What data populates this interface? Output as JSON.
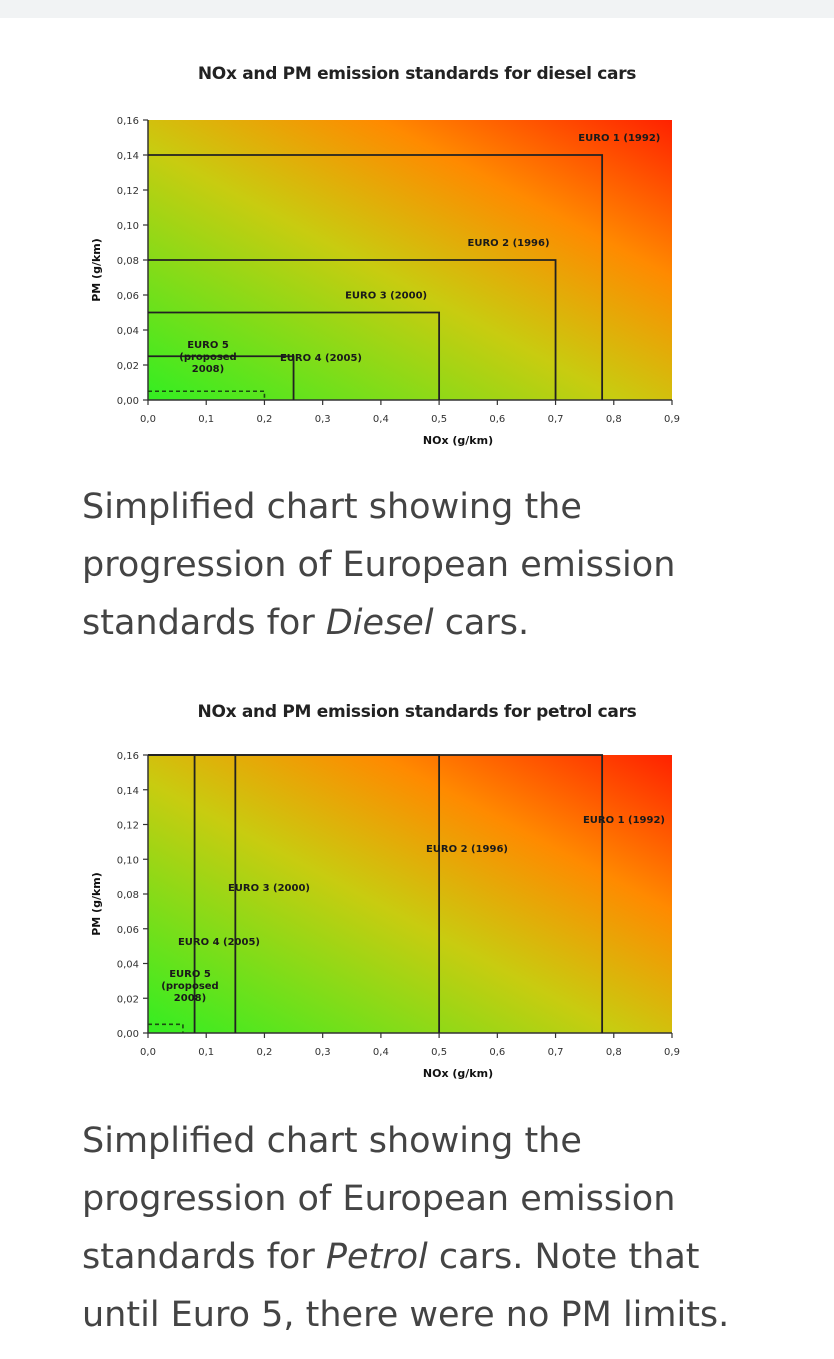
{
  "chart_data": [
    {
      "type": "area",
      "title": "NOx and PM emission standards for diesel cars",
      "xlabel": "NOx (g/km)",
      "ylabel": "PM (g/km)",
      "xlim": [
        0,
        0.9
      ],
      "ylim": [
        0,
        0.16
      ],
      "x_ticks": [
        "0,0",
        "0,1",
        "0,2",
        "0,3",
        "0,4",
        "0,5",
        "0,6",
        "0,7",
        "0,8",
        "0,9"
      ],
      "y_ticks": [
        "0,00",
        "0,02",
        "0,04",
        "0,06",
        "0,08",
        "0,10",
        "0,12",
        "0,14",
        "0,16"
      ],
      "gradient": {
        "low": "#33ee22",
        "high": "#ff2200"
      },
      "series": [
        {
          "name": "EURO 1 (1992)",
          "nox": 0.78,
          "pm": 0.14,
          "label": "EURO 1 (1992)"
        },
        {
          "name": "EURO 2 (1996)",
          "nox": 0.7,
          "pm": 0.08,
          "label": "EURO 2 (1996)"
        },
        {
          "name": "EURO 3 (2000)",
          "nox": 0.5,
          "pm": 0.05,
          "label": "EURO 3 (2000)"
        },
        {
          "name": "EURO 4 (2005)",
          "nox": 0.25,
          "pm": 0.025,
          "label": "EURO 4 (2005)"
        },
        {
          "name": "EURO 5 (proposed 2008)",
          "nox": 0.2,
          "pm": 0.005,
          "dashed": true,
          "label_lines": [
            "EURO 5",
            "(proposed",
            "2008)"
          ]
        }
      ]
    },
    {
      "type": "area",
      "title": "NOx and PM emission standards for petrol cars",
      "xlabel": "NOx (g/km)",
      "ylabel": "PM (g/km)",
      "xlim": [
        0,
        0.9
      ],
      "ylim": [
        0,
        0.16
      ],
      "x_ticks": [
        "0,0",
        "0,1",
        "0,2",
        "0,3",
        "0,4",
        "0,5",
        "0,6",
        "0,7",
        "0,8",
        "0,9"
      ],
      "y_ticks": [
        "0,00",
        "0,02",
        "0,04",
        "0,06",
        "0,08",
        "0,10",
        "0,12",
        "0,14",
        "0,16"
      ],
      "gradient": {
        "low": "#33ee22",
        "high": "#ff2200"
      },
      "series": [
        {
          "name": "EURO 1 (1992)",
          "nox": 0.78,
          "label": "EURO 1 (1992)"
        },
        {
          "name": "EURO 2 (1996)",
          "nox": 0.5,
          "label": "EURO 2 (1996)"
        },
        {
          "name": "EURO 3 (2000)",
          "nox": 0.15,
          "label": "EURO 3 (2000)"
        },
        {
          "name": "EURO 4 (2005)",
          "nox": 0.08,
          "label": "EURO 4 (2005)"
        },
        {
          "name": "EURO 5 (proposed 2008)",
          "nox": 0.06,
          "pm": 0.005,
          "dashed": true,
          "label_lines": [
            "EURO 5",
            "(proposed",
            "2008)"
          ]
        }
      ]
    }
  ],
  "captions": {
    "diesel": {
      "before": "Simplified chart showing the progression of European emission standards for ",
      "emphasis": "Diesel",
      "after": " cars."
    },
    "petrol": {
      "before": "Simplified chart showing the progression of European emission standards for ",
      "emphasis": "Petrol",
      "after": " cars. Note that until Euro 5, there were no PM limits."
    }
  }
}
